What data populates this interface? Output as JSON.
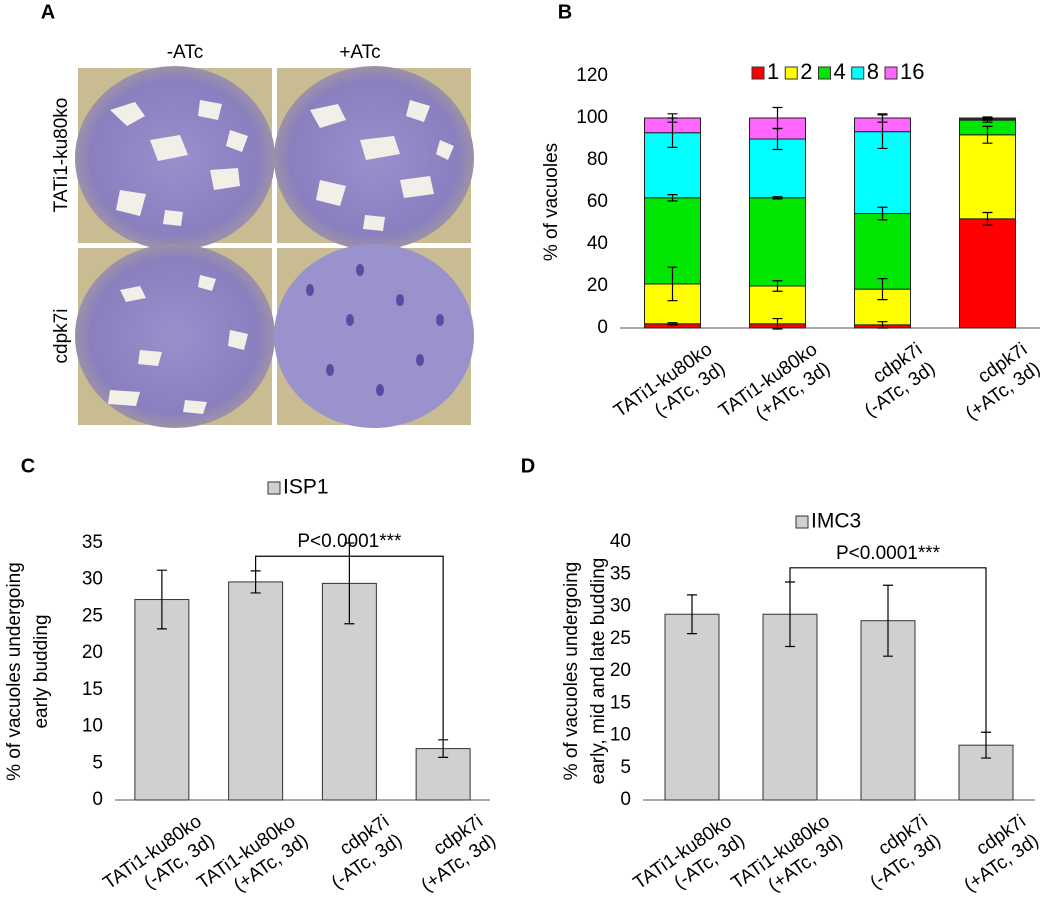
{
  "panel_a": {
    "label": "A",
    "columns": [
      "-ATc",
      "+ATc"
    ],
    "rows": [
      "TATi1-ku80ko",
      "cdpk7i"
    ]
  },
  "chart_data": [
    {
      "type": "stacked_bar",
      "panel_label": "B",
      "y_label": [
        "% of vacuoles"
      ],
      "categories": [
        [
          "TATi1-ku80ko",
          "(-ATc, 3d)"
        ],
        [
          "TATi1-ku80ko",
          "(+ATc, 3d)"
        ],
        [
          "cdpk7i",
          "(-ATc, 3d)"
        ],
        [
          "cdpk7i",
          "(+ATc, 3d)"
        ]
      ],
      "series": [
        {
          "name": "1",
          "color": "#ff0000",
          "values": [
            2,
            2,
            1.5,
            52
          ],
          "errors": [
            0.5,
            2.5,
            1.5,
            3
          ]
        },
        {
          "name": "2",
          "color": "#ffff00",
          "values": [
            19,
            18,
            17,
            40
          ],
          "errors": [
            8,
            2.5,
            5,
            4
          ]
        },
        {
          "name": "4",
          "color": "#00e600",
          "values": [
            41,
            42,
            36,
            7
          ],
          "errors": [
            1.5,
            0.5,
            3,
            1
          ]
        },
        {
          "name": "8",
          "color": "#00ffff",
          "values": [
            31,
            28,
            39,
            0.5
          ],
          "errors": [
            7,
            5,
            8,
            0.5
          ]
        },
        {
          "name": "16",
          "color": "#ff66ff",
          "values": [
            7,
            10,
            6.5,
            0.5
          ],
          "errors": [
            2,
            5,
            2,
            0.5
          ]
        }
      ],
      "ylim": [
        0,
        120
      ],
      "yticks": [
        0,
        20,
        40,
        60,
        80,
        100,
        120
      ]
    },
    {
      "type": "bar",
      "panel_label": "C",
      "y_label": [
        "% of vacuoles undergoing",
        "early budding"
      ],
      "categories": [
        [
          "TATi1-ku80ko",
          "(-ATc, 3d)"
        ],
        [
          "TATi1-ku80ko",
          "(+ATc, 3d)"
        ],
        [
          "cdpk7i",
          "(-ATc, 3d)"
        ],
        [
          "cdpk7i",
          "(+ATc, 3d)"
        ]
      ],
      "series": [
        {
          "name": "ISP1",
          "color": "#d0d0d0",
          "values": [
            27.3,
            29.7,
            29.5,
            7
          ],
          "errors": [
            4,
            1.5,
            5.5,
            1.2
          ]
        }
      ],
      "annotation": "P<0.0001***",
      "ylim": [
        0,
        35
      ],
      "yticks": [
        0,
        5,
        10,
        15,
        20,
        25,
        30,
        35
      ]
    },
    {
      "type": "bar",
      "panel_label": "D",
      "y_label": [
        "% of vacuoles undergoing",
        "early, mid and late budding"
      ],
      "categories": [
        [
          "TATi1-ku80ko",
          "(-ATc, 3d)"
        ],
        [
          "TATi1-ku80ko",
          "(+ATc, 3d)"
        ],
        [
          "cdpk7i",
          "(-ATc, 3d)"
        ],
        [
          "cdpk7i",
          "(+ATc, 3d)"
        ]
      ],
      "series": [
        {
          "name": "IMC3",
          "color": "#d0d0d0",
          "values": [
            28.8,
            28.8,
            27.8,
            8.5
          ],
          "errors": [
            3,
            5,
            5.5,
            2
          ]
        }
      ],
      "annotation": "P<0.0001***",
      "ylim": [
        0,
        40
      ],
      "yticks": [
        0,
        5,
        10,
        15,
        20,
        25,
        30,
        35,
        40
      ]
    }
  ]
}
